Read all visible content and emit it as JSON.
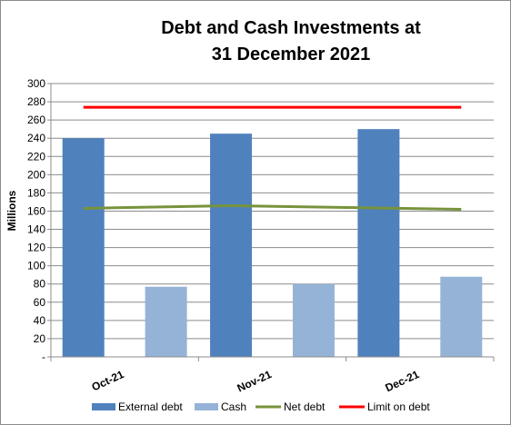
{
  "chart_data": {
    "type": "bar",
    "title_lines": [
      "Debt and Cash Investments at",
      "31 December 2021"
    ],
    "ylabel": "Millions",
    "xlabel": "",
    "ylim": [
      0,
      300
    ],
    "y_tick_step": 20,
    "y_tick_labels": [
      "-",
      "20",
      "40",
      "60",
      "80",
      "100",
      "120",
      "140",
      "160",
      "180",
      "200",
      "220",
      "240",
      "260",
      "280",
      "300"
    ],
    "categories": [
      "Oct-21",
      "Nov-21",
      "Dec-21"
    ],
    "grid": true,
    "legend_position": "bottom",
    "series": [
      {
        "name": "External debt",
        "kind": "bar",
        "color": "#4f81bd",
        "values": [
          240,
          245,
          250
        ]
      },
      {
        "name": "Cash",
        "kind": "bar",
        "color": "#95b3d7",
        "values": [
          77,
          80,
          88
        ]
      },
      {
        "name": "Net debt",
        "kind": "line",
        "color": "#77933c",
        "values": [
          163,
          166,
          162
        ]
      },
      {
        "name": "Limit on debt",
        "kind": "line",
        "color": "#ff0000",
        "values": [
          274,
          274,
          274
        ]
      }
    ]
  }
}
